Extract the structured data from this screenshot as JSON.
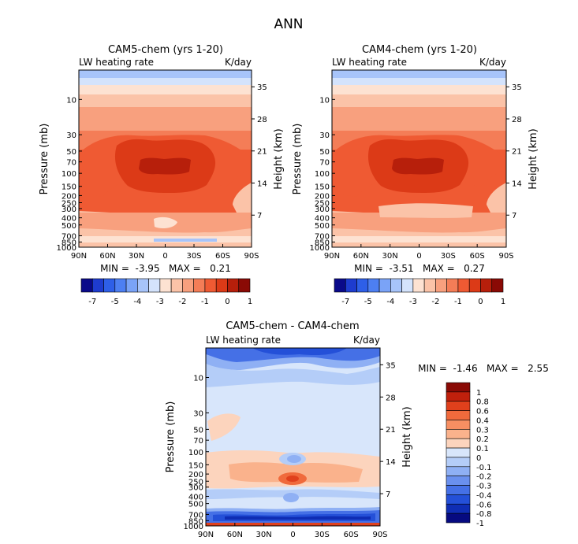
{
  "figure_title": "ANN",
  "chart_data": [
    {
      "id": "cam5",
      "type": "heatmap",
      "title": "CAM5-chem (yrs 1-20)",
      "subtitle_left": "LW heating rate",
      "subtitle_right": "K/day",
      "xlabel": "",
      "ylabel": "Pressure (mb)",
      "ylabel_right": "Height (km)",
      "x_ticks": [
        "90N",
        "60N",
        "30N",
        "0",
        "30S",
        "60S",
        "90S"
      ],
      "x_range": [
        90,
        -90
      ],
      "y_ticks": [
        "10",
        "30",
        "50",
        "70",
        "100",
        "150",
        "200",
        "250",
        "300",
        "400",
        "500",
        "700",
        "850",
        "1000"
      ],
      "y_tick_values": [
        10,
        30,
        50,
        70,
        100,
        150,
        200,
        250,
        300,
        400,
        500,
        700,
        850,
        1000
      ],
      "y_range_mb": [
        4,
        1000
      ],
      "height_ticks": [
        "35",
        "28",
        "21",
        "14",
        "7"
      ],
      "height_tick_values": [
        35,
        28,
        21,
        14,
        7
      ],
      "stats": "MIN =  -3.95   MAX =   0.21",
      "min": -3.95,
      "max": 0.21,
      "colorbar_labels": [
        "-7",
        "-5",
        "-4",
        "-3",
        "-2",
        "-1",
        "0",
        "1"
      ]
    },
    {
      "id": "cam4",
      "type": "heatmap",
      "title": "CAM4-chem (yrs 1-20)",
      "subtitle_left": "LW heating rate",
      "subtitle_right": "K/day",
      "xlabel": "",
      "ylabel": "Pressure (mb)",
      "ylabel_right": "Height (km)",
      "x_ticks": [
        "90N",
        "60N",
        "30N",
        "0",
        "30S",
        "60S",
        "90S"
      ],
      "x_range": [
        90,
        -90
      ],
      "y_ticks": [
        "10",
        "30",
        "50",
        "70",
        "100",
        "150",
        "200",
        "250",
        "300",
        "400",
        "500",
        "700",
        "850",
        "1000"
      ],
      "y_tick_values": [
        10,
        30,
        50,
        70,
        100,
        150,
        200,
        250,
        300,
        400,
        500,
        700,
        850,
        1000
      ],
      "y_range_mb": [
        4,
        1000
      ],
      "height_ticks": [
        "35",
        "28",
        "21",
        "14",
        "7"
      ],
      "height_tick_values": [
        35,
        28,
        21,
        14,
        7
      ],
      "stats": "MIN =  -3.51   MAX =   0.27",
      "min": -3.51,
      "max": 0.27,
      "colorbar_labels": [
        "-7",
        "-5",
        "-4",
        "-3",
        "-2",
        "-1",
        "0",
        "1"
      ]
    },
    {
      "id": "diff",
      "type": "heatmap",
      "title": "CAM5-chem - CAM4-chem",
      "subtitle_left": "LW heating rate",
      "subtitle_right": "K/day",
      "xlabel": "",
      "ylabel": "Pressure (mb)",
      "ylabel_right": "Height (km)",
      "x_ticks": [
        "90N",
        "60N",
        "30N",
        "0",
        "30S",
        "60S",
        "90S"
      ],
      "x_range": [
        90,
        -90
      ],
      "y_ticks": [
        "10",
        "30",
        "50",
        "70",
        "100",
        "150",
        "200",
        "250",
        "300",
        "400",
        "500",
        "700",
        "850",
        "1000"
      ],
      "y_tick_values": [
        10,
        30,
        50,
        70,
        100,
        150,
        200,
        250,
        300,
        400,
        500,
        700,
        850,
        1000
      ],
      "y_range_mb": [
        4,
        1000
      ],
      "height_ticks": [
        "35",
        "28",
        "21",
        "14",
        "7"
      ],
      "height_tick_values": [
        35,
        28,
        21,
        14,
        7
      ],
      "stats": "MIN =  -1.46   MAX =   2.55",
      "min": -1.46,
      "max": 2.55,
      "colorbar_labels": [
        "1",
        "0.8",
        "0.6",
        "0.4",
        "0.3",
        "0.2",
        "0.1",
        "0",
        "-0.1",
        "-0.2",
        "-0.3",
        "-0.4",
        "-0.6",
        "-0.8",
        "-1"
      ]
    }
  ],
  "colors": {
    "abs_scale": [
      "#0a0a8a",
      "#1e3ccf",
      "#2e5fe8",
      "#4d7ff2",
      "#7aa3f7",
      "#a7c4fa",
      "#d4e3fc",
      "#fde2d2",
      "#fbc3a8",
      "#f8a07e",
      "#f47d57",
      "#ef5a33",
      "#dc3a17",
      "#b71f0b",
      "#8a0a05"
    ],
    "diff_scale": [
      "#8a0a05",
      "#c0200c",
      "#e0401c",
      "#f06a3c",
      "#f78f62",
      "#fab28c",
      "#fcd4bd",
      "#d8e6fb",
      "#b4cdf8",
      "#8fb0f4",
      "#6a90ee",
      "#4570e6",
      "#2450d8",
      "#0f2db4",
      "#060a80"
    ]
  }
}
